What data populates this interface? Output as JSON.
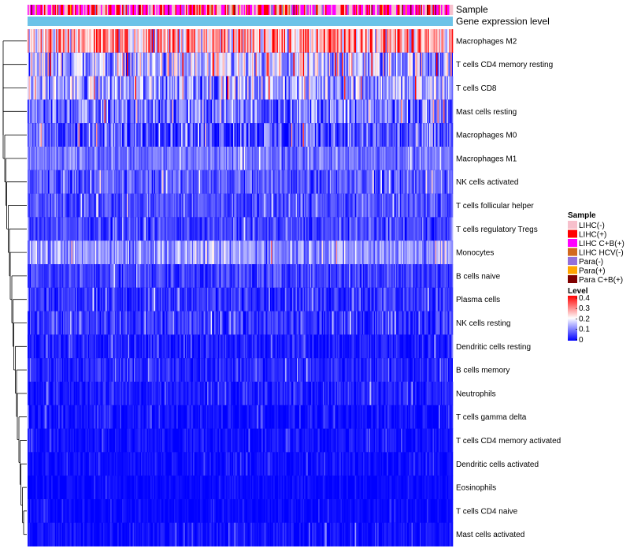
{
  "chart_data": {
    "type": "heatmap",
    "title": "",
    "annotations": [
      {
        "name": "Sample",
        "type": "categorical"
      },
      {
        "name": "Gene expression level",
        "type": "constant",
        "color": "#6cc3e8"
      }
    ],
    "rows": [
      {
        "label": "Macrophages M2",
        "mean": 0.26,
        "spread": 0.12
      },
      {
        "label": "T cells CD4 memory resting",
        "mean": 0.14,
        "spread": 0.11
      },
      {
        "label": "T cells CD8",
        "mean": 0.13,
        "spread": 0.09
      },
      {
        "label": "Mast cells resting",
        "mean": 0.09,
        "spread": 0.08
      },
      {
        "label": "Macrophages M0",
        "mean": 0.06,
        "spread": 0.08
      },
      {
        "label": "Macrophages M1",
        "mean": 0.09,
        "spread": 0.04
      },
      {
        "label": "NK cells activated",
        "mean": 0.07,
        "spread": 0.05
      },
      {
        "label": "T cells follicular helper",
        "mean": 0.06,
        "spread": 0.04
      },
      {
        "label": "T cells regulatory  Tregs",
        "mean": 0.05,
        "spread": 0.04
      },
      {
        "label": "Monocytes",
        "mean": 0.12,
        "spread": 0.06
      },
      {
        "label": "B cells naive",
        "mean": 0.05,
        "spread": 0.04
      },
      {
        "label": "Plasma cells",
        "mean": 0.04,
        "spread": 0.04
      },
      {
        "label": "NK cells resting",
        "mean": 0.04,
        "spread": 0.04
      },
      {
        "label": "Dendritic cells resting",
        "mean": 0.02,
        "spread": 0.03
      },
      {
        "label": "B cells memory",
        "mean": 0.03,
        "spread": 0.03
      },
      {
        "label": "Neutrophils",
        "mean": 0.02,
        "spread": 0.03
      },
      {
        "label": "T cells gamma delta",
        "mean": 0.01,
        "spread": 0.025
      },
      {
        "label": "T cells CD4 memory activated",
        "mean": 0.01,
        "spread": 0.025
      },
      {
        "label": "Dendritic cells activated",
        "mean": 0.01,
        "spread": 0.02
      },
      {
        "label": "Eosinophils",
        "mean": 0.005,
        "spread": 0.015
      },
      {
        "label": "T cells CD4 naive",
        "mean": 0.005,
        "spread": 0.015
      },
      {
        "label": "Mast cells activated",
        "mean": 0.01,
        "spread": 0.025
      }
    ],
    "legend_sample": {
      "title": "Sample",
      "items": [
        {
          "label": "LIHC(-)",
          "color": "#f7c0cc"
        },
        {
          "label": "LIHC(+)",
          "color": "#ff0000"
        },
        {
          "label": "LIHC C+B(+)",
          "color": "#ff00ff"
        },
        {
          "label": "LIHC HCV(-)",
          "color": "#d2691e"
        },
        {
          "label": "Para(-)",
          "color": "#9370db"
        },
        {
          "label": "Para(+)",
          "color": "#ffa500"
        },
        {
          "label": "Para C+B(+)",
          "color": "#800000"
        }
      ]
    },
    "legend_level": {
      "title": "Level",
      "ticks": [
        "0.4",
        "0.3",
        "0.2",
        "0.1",
        "0"
      ],
      "range": [
        0,
        0.4
      ],
      "colors": {
        "low": "#0000ff",
        "mid": "#ffffff",
        "high": "#ff0000"
      }
    }
  }
}
